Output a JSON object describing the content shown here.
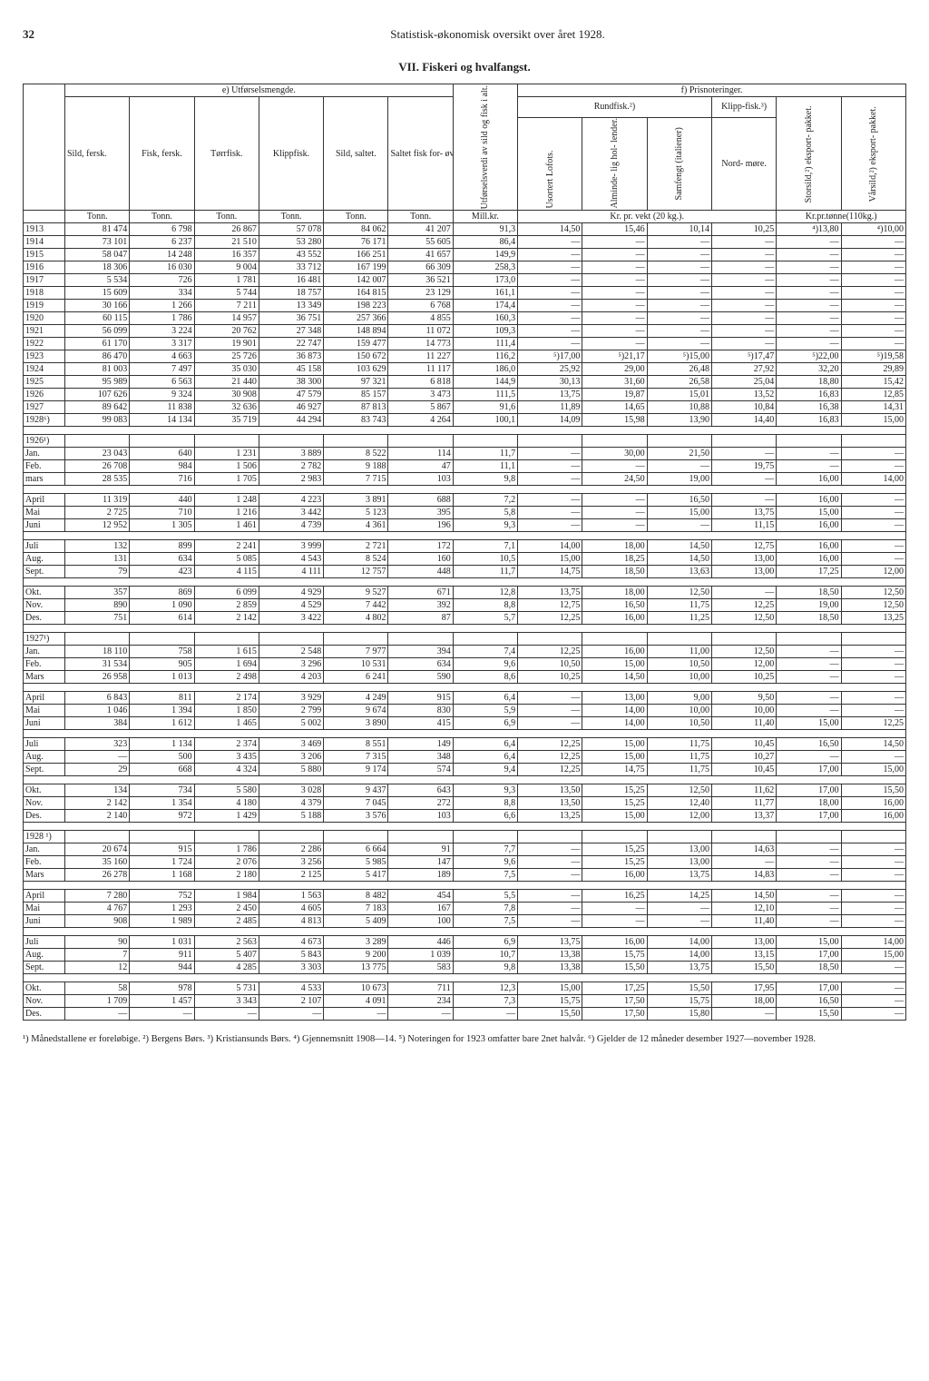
{
  "page_number": "32",
  "page_title": "Statistisk-økonomisk oversikt over året 1928.",
  "section_title": "VII. Fiskeri og hvalfangst.",
  "header_e": "e) Utførselsmengde.",
  "header_f": "f) Prisnoteringer.",
  "header_rundfisk": "Rundfisk.²)",
  "header_klippfisk": "Klipp-fisk.³)",
  "cols": {
    "c1": "Sild, fersk.",
    "c2": "Fisk, fersk.",
    "c3": "Tørrfisk.",
    "c4": "Klippfisk.",
    "c5": "Sild, saltet.",
    "c6": "Saltet fisk for- øvrig.",
    "c7": "Utførselsverdi av sild og fisk i alt.",
    "c8": "Usortert Lofots.",
    "c9": "Alminde- lig hol- lender.",
    "c10": "Samfengt (italiener)",
    "c11": "Nord- møre.",
    "c12": "Storsild,²) eksport- pakket.",
    "c13": "Vårsild,²) eksport- pakket."
  },
  "units": {
    "tonn": "Tonn.",
    "millkr": "Mill.kr.",
    "krvekt": "Kr. pr. vekt (20 kg.).",
    "krtonne": "Kr.pr.tønne(110kg.)"
  },
  "rows": [
    {
      "g": 1,
      "label": "1913",
      "v": [
        "81 474",
        "6 798",
        "26 867",
        "57 078",
        "84 062",
        "41 207",
        "91,3",
        "14,50",
        "15,46",
        "10,14",
        "10,25",
        "⁴)13,80",
        "⁴)10,00"
      ]
    },
    {
      "g": 1,
      "label": "1914",
      "v": [
        "73 101",
        "6 237",
        "21 510",
        "53 280",
        "76 171",
        "55 605",
        "86,4",
        "—",
        "—",
        "—",
        "—",
        "—",
        "—"
      ]
    },
    {
      "g": 1,
      "label": "1915",
      "v": [
        "58 047",
        "14 248",
        "16 357",
        "43 552",
        "166 251",
        "41 657",
        "149,9",
        "—",
        "—",
        "—",
        "—",
        "—",
        "—"
      ]
    },
    {
      "g": 1,
      "label": "1916",
      "v": [
        "18 306",
        "16 030",
        "9 004",
        "33 712",
        "167 199",
        "66 309",
        "258,3",
        "—",
        "—",
        "—",
        "—",
        "—",
        "—"
      ]
    },
    {
      "g": 1,
      "label": "1917",
      "v": [
        "5 534",
        "726",
        "1 781",
        "16 481",
        "142 007",
        "36 521",
        "173,0",
        "—",
        "—",
        "—",
        "—",
        "—",
        "—"
      ]
    },
    {
      "g": 1,
      "label": "1918",
      "v": [
        "15 609",
        "334",
        "5 744",
        "18 757",
        "164 815",
        "23 129",
        "161,1",
        "—",
        "—",
        "—",
        "—",
        "—",
        "—"
      ]
    },
    {
      "g": 1,
      "label": "1919",
      "v": [
        "30 166",
        "1 266",
        "7 211",
        "13 349",
        "198 223",
        "6 768",
        "174,4",
        "—",
        "—",
        "—",
        "—",
        "—",
        "—"
      ]
    },
    {
      "g": 1,
      "label": "1920",
      "v": [
        "60 115",
        "1 786",
        "14 957",
        "36 751",
        "257 366",
        "4 855",
        "160,3",
        "—",
        "—",
        "—",
        "—",
        "—",
        "—"
      ]
    },
    {
      "g": 1,
      "label": "1921",
      "v": [
        "56 099",
        "3 224",
        "20 762",
        "27 348",
        "148 894",
        "11 072",
        "109,3",
        "—",
        "—",
        "—",
        "—",
        "—",
        "—"
      ]
    },
    {
      "g": 1,
      "label": "1922",
      "v": [
        "61 170",
        "3 317",
        "19 901",
        "22 747",
        "159 477",
        "14 773",
        "111,4",
        "—",
        "—",
        "—",
        "—",
        "—",
        "—"
      ]
    },
    {
      "g": 1,
      "label": "1923",
      "v": [
        "86 470",
        "4 663",
        "25 726",
        "36 873",
        "150 672",
        "11 227",
        "116,2",
        "⁵)17,00",
        "⁵)21,17",
        "⁵)15,00",
        "⁵)17,47",
        "⁵)22,00",
        "⁵)19,58"
      ]
    },
    {
      "g": 1,
      "label": "1924",
      "v": [
        "81 003",
        "7 497",
        "35 030",
        "45 158",
        "103 629",
        "11 117",
        "186,0",
        "25,92",
        "29,00",
        "26,48",
        "27,92",
        "32,20",
        "29,89"
      ]
    },
    {
      "g": 1,
      "label": "1925",
      "v": [
        "95 989",
        "6 563",
        "21 440",
        "38 300",
        "97 321",
        "6 818",
        "144,9",
        "30,13",
        "31,60",
        "26,58",
        "25,04",
        "18,80",
        "15,42"
      ]
    },
    {
      "g": 1,
      "label": "1926",
      "v": [
        "107 626",
        "9 324",
        "30 908",
        "47 579",
        "85 157",
        "3 473",
        "111,5",
        "13,75",
        "19,87",
        "15,01",
        "13,52",
        "16,83",
        "12,85"
      ]
    },
    {
      "g": 1,
      "label": "1927",
      "v": [
        "89 642",
        "11 838",
        "32 636",
        "46 927",
        "87 813",
        "5 867",
        "91,6",
        "11,89",
        "14,65",
        "10,88",
        "10,84",
        "16,38",
        "14,31"
      ]
    },
    {
      "g": 1,
      "label": "1928⁶)",
      "v": [
        "99 083",
        "14 134",
        "35 719",
        "44 294",
        "83 743",
        "4 264",
        "100,1",
        "14,09",
        "15,98",
        "13,90",
        "14,40",
        "16,83",
        "15,00"
      ]
    },
    {
      "g": 2,
      "label": "1926¹)",
      "v": [
        "",
        "",
        "",
        "",
        "",
        "",
        "",
        "",
        "",
        "",
        "",
        "",
        ""
      ]
    },
    {
      "g": 2,
      "label": "Jan.",
      "v": [
        "23 043",
        "640",
        "1 231",
        "3 889",
        "8 522",
        "114",
        "11,7",
        "—",
        "30,00",
        "21,50",
        "—",
        "—",
        "—"
      ]
    },
    {
      "g": 2,
      "label": "Feb.",
      "v": [
        "26 708",
        "984",
        "1 506",
        "2 782",
        "9 188",
        "47",
        "11,1",
        "—",
        "—",
        "—",
        "19,75",
        "—",
        "—"
      ]
    },
    {
      "g": 2,
      "label": "mars",
      "v": [
        "28 535",
        "716",
        "1 705",
        "2 983",
        "7 715",
        "103",
        "9,8",
        "—",
        "24,50",
        "19,00",
        "—",
        "16,00",
        "14,00"
      ]
    },
    {
      "g": 3,
      "label": "April",
      "v": [
        "11 319",
        "440",
        "1 248",
        "4 223",
        "3 891",
        "688",
        "7,2",
        "—",
        "—",
        "16,50",
        "—",
        "16,00",
        "—"
      ]
    },
    {
      "g": 3,
      "label": "Mai",
      "v": [
        "2 725",
        "710",
        "1 216",
        "3 442",
        "5 123",
        "395",
        "5,8",
        "—",
        "—",
        "15,00",
        "13,75",
        "15,00",
        "—"
      ]
    },
    {
      "g": 3,
      "label": "Juni",
      "v": [
        "12 952",
        "1 305",
        "1 461",
        "4 739",
        "4 361",
        "196",
        "9,3",
        "—",
        "—",
        "—",
        "11,15",
        "16,00",
        "—"
      ]
    },
    {
      "g": 4,
      "label": "Juli",
      "v": [
        "132",
        "899",
        "2 241",
        "3 999",
        "2 721",
        "172",
        "7,1",
        "14,00",
        "18,00",
        "14,50",
        "12,75",
        "16,00",
        "—"
      ]
    },
    {
      "g": 4,
      "label": "Aug.",
      "v": [
        "131",
        "634",
        "5 085",
        "4 543",
        "8 524",
        "160",
        "10,5",
        "15,00",
        "18,25",
        "14,50",
        "13,00",
        "16,00",
        "—"
      ]
    },
    {
      "g": 4,
      "label": "Sept.",
      "v": [
        "79",
        "423",
        "4 115",
        "4 111",
        "12 757",
        "448",
        "11,7",
        "14,75",
        "18,50",
        "13,63",
        "13,00",
        "17,25",
        "12,00"
      ]
    },
    {
      "g": 5,
      "label": "Okt.",
      "v": [
        "357",
        "869",
        "6 099",
        "4 929",
        "9 527",
        "671",
        "12,8",
        "13,75",
        "18,00",
        "12,50",
        "—",
        "18,50",
        "12,50"
      ]
    },
    {
      "g": 5,
      "label": "Nov.",
      "v": [
        "890",
        "1 090",
        "2 859",
        "4 529",
        "7 442",
        "392",
        "8,8",
        "12,75",
        "16,50",
        "11,75",
        "12,25",
        "19,00",
        "12,50"
      ]
    },
    {
      "g": 5,
      "label": "Des.",
      "v": [
        "751",
        "614",
        "2 142",
        "3 422",
        "4 802",
        "87",
        "5,7",
        "12,25",
        "16,00",
        "11,25",
        "12,50",
        "18,50",
        "13,25"
      ]
    },
    {
      "g": 6,
      "label": "1927¹)",
      "v": [
        "",
        "",
        "",
        "",
        "",
        "",
        "",
        "",
        "",
        "",
        "",
        "",
        ""
      ]
    },
    {
      "g": 6,
      "label": "Jan.",
      "v": [
        "18 110",
        "758",
        "1 615",
        "2 548",
        "7 977",
        "394",
        "7,4",
        "12,25",
        "16,00",
        "11,00",
        "12,50",
        "—",
        "—"
      ]
    },
    {
      "g": 6,
      "label": "Feb.",
      "v": [
        "31 534",
        "905",
        "1 694",
        "3 296",
        "10 531",
        "634",
        "9,6",
        "10,50",
        "15,00",
        "10,50",
        "12,00",
        "—",
        "—"
      ]
    },
    {
      "g": 6,
      "label": "Mars",
      "v": [
        "26 958",
        "1 013",
        "2 498",
        "4 203",
        "6 241",
        "590",
        "8,6",
        "10,25",
        "14,50",
        "10,00",
        "10,25",
        "—",
        "—"
      ]
    },
    {
      "g": 7,
      "label": "April",
      "v": [
        "6 843",
        "811",
        "2 174",
        "3 929",
        "4 249",
        "915",
        "6,4",
        "—",
        "13,00",
        "9,00",
        "9,50",
        "—",
        "—"
      ]
    },
    {
      "g": 7,
      "label": "Mai",
      "v": [
        "1 046",
        "1 394",
        "1 850",
        "2 799",
        "9 674",
        "830",
        "5,9",
        "—",
        "14,00",
        "10,00",
        "10,00",
        "—",
        "—"
      ]
    },
    {
      "g": 7,
      "label": "Juni",
      "v": [
        "384",
        "1 612",
        "1 465",
        "5 002",
        "3 890",
        "415",
        "6,9",
        "—",
        "14,00",
        "10,50",
        "11,40",
        "15,00",
        "12,25"
      ]
    },
    {
      "g": 8,
      "label": "Juli",
      "v": [
        "323",
        "1 134",
        "2 374",
        "3 469",
        "8 551",
        "149",
        "6,4",
        "12,25",
        "15,00",
        "11,75",
        "10,45",
        "16,50",
        "14,50"
      ]
    },
    {
      "g": 8,
      "label": "Aug.",
      "v": [
        "—",
        "500",
        "3 435",
        "3 206",
        "7 315",
        "348",
        "6,4",
        "12,25",
        "15,00",
        "11,75",
        "10,27",
        "—",
        "—"
      ]
    },
    {
      "g": 8,
      "label": "Sept.",
      "v": [
        "29",
        "668",
        "4 324",
        "5 880",
        "9 174",
        "574",
        "9,4",
        "12,25",
        "14,75",
        "11,75",
        "10,45",
        "17,00",
        "15,00"
      ]
    },
    {
      "g": 9,
      "label": "Okt.",
      "v": [
        "134",
        "734",
        "5 580",
        "3 028",
        "9 437",
        "643",
        "9,3",
        "13,50",
        "15,25",
        "12,50",
        "11,62",
        "17,00",
        "15,50"
      ]
    },
    {
      "g": 9,
      "label": "Nov.",
      "v": [
        "2 142",
        "1 354",
        "4 180",
        "4 379",
        "7 045",
        "272",
        "8,8",
        "13,50",
        "15,25",
        "12,40",
        "11,77",
        "18,00",
        "16,00"
      ]
    },
    {
      "g": 9,
      "label": "Des.",
      "v": [
        "2 140",
        "972",
        "1 429",
        "5 188",
        "3 576",
        "103",
        "6,6",
        "13,25",
        "15,00",
        "12,00",
        "13,37",
        "17,00",
        "16,00"
      ]
    },
    {
      "g": 10,
      "label": "1928 ¹)",
      "v": [
        "",
        "",
        "",
        "",
        "",
        "",
        "",
        "",
        "",
        "",
        "",
        "",
        ""
      ]
    },
    {
      "g": 10,
      "label": "Jan.",
      "v": [
        "20 674",
        "915",
        "1 786",
        "2 286",
        "6 664",
        "91",
        "7,7",
        "—",
        "15,25",
        "13,00",
        "14,63",
        "—",
        "—"
      ]
    },
    {
      "g": 10,
      "label": "Feb.",
      "v": [
        "35 160",
        "1 724",
        "2 076",
        "3 256",
        "5 985",
        "147",
        "9,6",
        "—",
        "15,25",
        "13,00",
        "—",
        "—",
        "—"
      ]
    },
    {
      "g": 10,
      "label": "Mars",
      "v": [
        "26 278",
        "1 168",
        "2 180",
        "2 125",
        "5 417",
        "189",
        "7,5",
        "—",
        "16,00",
        "13,75",
        "14,83",
        "—",
        "—"
      ]
    },
    {
      "g": 11,
      "label": "April",
      "v": [
        "7 280",
        "752",
        "1 984",
        "1 563",
        "8 482",
        "454",
        "5,5",
        "—",
        "16,25",
        "14,25",
        "14,50",
        "—",
        "—"
      ]
    },
    {
      "g": 11,
      "label": "Mai",
      "v": [
        "4 767",
        "1 293",
        "2 450",
        "4 605",
        "7 183",
        "167",
        "7,8",
        "—",
        "—",
        "—",
        "12,10",
        "—",
        "—"
      ]
    },
    {
      "g": 11,
      "label": "Juni",
      "v": [
        "908",
        "1 989",
        "2 485",
        "4 813",
        "5 409",
        "100",
        "7,5",
        "—",
        "—",
        "—",
        "11,40",
        "—",
        "—"
      ]
    },
    {
      "g": 12,
      "label": "Juli",
      "v": [
        "90",
        "1 031",
        "2 563",
        "4 673",
        "3 289",
        "446",
        "6,9",
        "13,75",
        "16,00",
        "14,00",
        "13,00",
        "15,00",
        "14,00"
      ]
    },
    {
      "g": 12,
      "label": "Aug.",
      "v": [
        "7",
        "911",
        "5 407",
        "5 843",
        "9 200",
        "1 039",
        "10,7",
        "13,38",
        "15,75",
        "14,00",
        "13,15",
        "17,00",
        "15,00"
      ]
    },
    {
      "g": 12,
      "label": "Sept.",
      "v": [
        "12",
        "944",
        "4 285",
        "3 303",
        "13 775",
        "583",
        "9,8",
        "13,38",
        "15,50",
        "13,75",
        "15,50",
        "18,50",
        "—"
      ]
    },
    {
      "g": 13,
      "label": "Okt.",
      "v": [
        "58",
        "978",
        "5 731",
        "4 533",
        "10 673",
        "711",
        "12,3",
        "15,00",
        "17,25",
        "15,50",
        "17,95",
        "17,00",
        "—"
      ]
    },
    {
      "g": 13,
      "label": "Nov.",
      "v": [
        "1 709",
        "1 457",
        "3 343",
        "2 107",
        "4 091",
        "234",
        "7,3",
        "15,75",
        "17,50",
        "15,75",
        "18,00",
        "16,50",
        "—"
      ]
    },
    {
      "g": 13,
      "label": "Des.",
      "v": [
        "—",
        "—",
        "—",
        "—",
        "—",
        "—",
        "—",
        "15,50",
        "17,50",
        "15,80",
        "—",
        "15,50",
        "—"
      ]
    }
  ],
  "footnotes": "¹) Månedstallene er foreløbige.   ²) Bergens Børs.   ³) Kristiansunds Børs.   ⁴) Gjennemsnitt 1908—14.   ⁵) Noteringen for 1923 omfatter bare 2net halvår.   ⁶) Gjelder de 12 måneder desember 1927—november 1928."
}
